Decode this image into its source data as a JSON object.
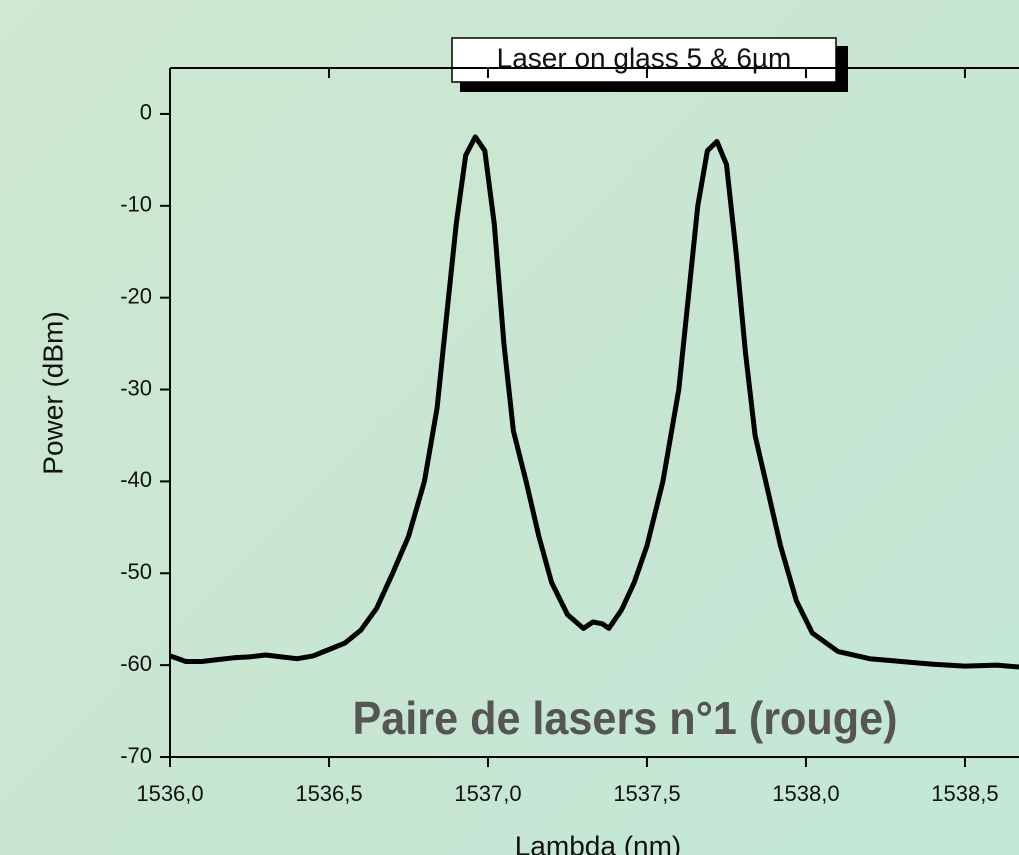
{
  "chart_data": {
    "type": "line",
    "title": "Laser on glass 5 & 6µm",
    "annotation": "Paire de lasers n°1 (rouge)",
    "x_label": "Lambda (nm)",
    "y_label": "Power (dBm)",
    "xlim": [
      1536,
      1538.67
    ],
    "ylim": [
      -70,
      5
    ],
    "xticks": [
      {
        "value": 1536,
        "label": "1536,0"
      },
      {
        "value": 1536.5,
        "label": "1536,5"
      },
      {
        "value": 1537,
        "label": "1537,0"
      },
      {
        "value": 1537.5,
        "label": "1537,5"
      },
      {
        "value": 1538,
        "label": "1538,0"
      },
      {
        "value": 1538.5,
        "label": "1538,5"
      }
    ],
    "yticks": [
      0,
      -10,
      -20,
      -30,
      -40,
      -50,
      -60,
      -70
    ],
    "x": [
      1536.0,
      1536.05,
      1536.1,
      1536.15,
      1536.2,
      1536.25,
      1536.3,
      1536.35,
      1536.4,
      1536.45,
      1536.5,
      1536.55,
      1536.6,
      1536.65,
      1536.7,
      1536.75,
      1536.8,
      1536.84,
      1536.87,
      1536.9,
      1536.93,
      1536.96,
      1536.99,
      1537.02,
      1537.05,
      1537.08,
      1537.12,
      1537.16,
      1537.2,
      1537.25,
      1537.3,
      1537.33,
      1537.36,
      1537.38,
      1537.42,
      1537.46,
      1537.5,
      1537.55,
      1537.6,
      1537.63,
      1537.66,
      1537.69,
      1537.72,
      1537.75,
      1537.78,
      1537.81,
      1537.84,
      1537.88,
      1537.92,
      1537.97,
      1538.02,
      1538.1,
      1538.2,
      1538.3,
      1538.4,
      1538.5,
      1538.6,
      1538.67
    ],
    "series": [
      {
        "color": "#000000",
        "values": [
          -59,
          -59.6,
          -59.6,
          -59.4,
          -59.2,
          -59.1,
          -58.9,
          -59.1,
          -59.3,
          -59,
          -58.3,
          -57.6,
          -56.2,
          -53.8,
          -50,
          -46,
          -40,
          -32,
          -22,
          -12,
          -4.5,
          -2.5,
          -4,
          -12,
          -25,
          -34.5,
          -40,
          -46,
          -51,
          -54.5,
          -56,
          -55.3,
          -55.5,
          -56,
          -54,
          -51,
          -47,
          -40,
          -30,
          -20,
          -10,
          -4,
          -3,
          -5.5,
          -15,
          -26,
          -35,
          -41,
          -47,
          -53,
          -56.5,
          -58.5,
          -59.3,
          -59.6,
          -59.9,
          -60.1,
          -60,
          -60.2
        ]
      }
    ]
  }
}
